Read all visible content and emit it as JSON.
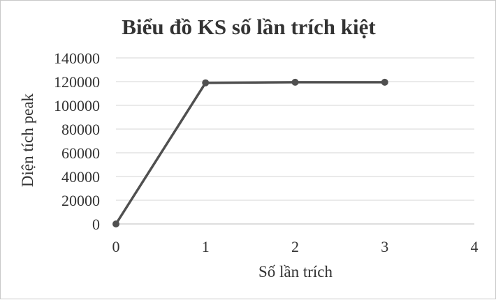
{
  "chart_data": {
    "type": "scatter",
    "title": "Biểu đồ KS số lần trích kiệt",
    "xlabel": "Số lần trích",
    "ylabel": "Diện tích peak",
    "xlim": [
      0,
      4
    ],
    "ylim": [
      0,
      140000
    ],
    "x_ticks": [
      "0",
      "1",
      "2",
      "3",
      "4"
    ],
    "y_ticks": [
      "0",
      "20000",
      "40000",
      "60000",
      "80000",
      "100000",
      "120000",
      "140000"
    ],
    "grid": "horizontal",
    "legend": "none",
    "series": [
      {
        "color": "#505050",
        "line": true,
        "markers": true,
        "points": [
          {
            "x": 0,
            "y": 0
          },
          {
            "x": 1,
            "y": 119000
          },
          {
            "x": 2,
            "y": 119500
          },
          {
            "x": 3,
            "y": 119500
          }
        ]
      }
    ]
  }
}
